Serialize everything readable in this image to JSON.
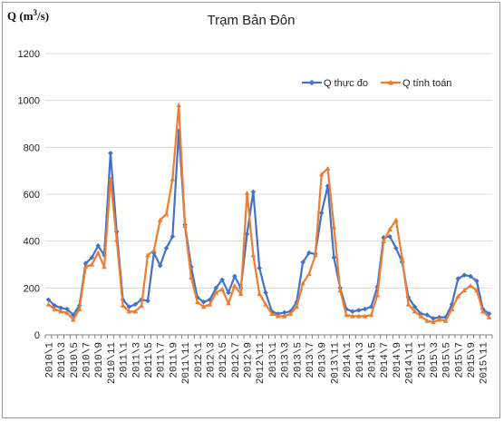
{
  "chart_data": {
    "type": "line",
    "title": "Trạm Bản Đôn",
    "ylabel": "Q (m³/s)",
    "ylabel_main": "Q (m",
    "ylabel_sup": "3",
    "ylabel_tail": "/s)",
    "xlabel": "",
    "ylim": [
      0,
      1200
    ],
    "yticks": [
      "0",
      "200",
      "400",
      "600",
      "800",
      "1000",
      "1200"
    ],
    "grid": true,
    "legend_position": "top-right",
    "x_tick_labels": [
      "2010\\1",
      "2010\\3",
      "2010\\5",
      "2010\\7",
      "2010\\9",
      "2010\\11",
      "2011\\1",
      "2011\\3",
      "2011\\5",
      "2011\\7",
      "2011\\9",
      "2011\\11",
      "2012\\1",
      "2012\\3",
      "2012\\5",
      "2012\\7",
      "2012\\9",
      "2012\\11",
      "2013\\1",
      "2013\\3",
      "2013\\5",
      "2013\\7",
      "2013\\9",
      "2013\\11",
      "2014\\1",
      "2014\\3",
      "2014\\5",
      "2014\\7",
      "2014\\9",
      "2014\\11",
      "2015\\1",
      "2015\\3",
      "2015\\5",
      "2015\\7",
      "2015\\9",
      "2015\\11"
    ],
    "x": [
      "2010\\1",
      "2010\\2",
      "2010\\3",
      "2010\\4",
      "2010\\5",
      "2010\\6",
      "2010\\7",
      "2010\\8",
      "2010\\9",
      "2010\\10",
      "2010\\11",
      "2010\\12",
      "2011\\1",
      "2011\\2",
      "2011\\3",
      "2011\\4",
      "2011\\5",
      "2011\\6",
      "2011\\7",
      "2011\\8",
      "2011\\9",
      "2011\\10",
      "2011\\11",
      "2011\\12",
      "2012\\1",
      "2012\\2",
      "2012\\3",
      "2012\\4",
      "2012\\5",
      "2012\\6",
      "2012\\7",
      "2012\\8",
      "2012\\9",
      "2012\\10",
      "2012\\11",
      "2012\\12",
      "2013\\1",
      "2013\\2",
      "2013\\3",
      "2013\\4",
      "2013\\5",
      "2013\\6",
      "2013\\7",
      "2013\\8",
      "2013\\9",
      "2013\\10",
      "2013\\11",
      "2013\\12",
      "2014\\1",
      "2014\\2",
      "2014\\3",
      "2014\\4",
      "2014\\5",
      "2014\\6",
      "2014\\7",
      "2014\\8",
      "2014\\9",
      "2014\\10",
      "2014\\11",
      "2014\\12",
      "2015\\1",
      "2015\\2",
      "2015\\3",
      "2015\\4",
      "2015\\5",
      "2015\\6",
      "2015\\7",
      "2015\\8",
      "2015\\9",
      "2015\\10",
      "2015\\11",
      "2015\\12"
    ],
    "series": [
      {
        "name": "Q thực đo",
        "color": "#4472C4",
        "marker": "diamond",
        "values": [
          150,
          125,
          115,
          110,
          85,
          125,
          305,
          330,
          380,
          340,
          775,
          440,
          150,
          120,
          130,
          150,
          145,
          350,
          295,
          370,
          420,
          870,
          470,
          290,
          160,
          140,
          150,
          200,
          235,
          180,
          250,
          200,
          430,
          610,
          285,
          180,
          100,
          90,
          95,
          100,
          140,
          310,
          350,
          345,
          520,
          635,
          330,
          200,
          110,
          100,
          105,
          110,
          120,
          205,
          415,
          420,
          370,
          310,
          160,
          120,
          90,
          85,
          70,
          75,
          75,
          130,
          240,
          255,
          250,
          230,
          110,
          90
        ]
      },
      {
        "name": "Q tính toán",
        "color": "#ED7D31",
        "marker": "triangle",
        "values": [
          130,
          110,
          100,
          95,
          65,
          110,
          290,
          300,
          350,
          290,
          665,
          405,
          125,
          100,
          100,
          125,
          340,
          360,
          490,
          515,
          665,
          980,
          465,
          245,
          140,
          120,
          130,
          180,
          195,
          135,
          210,
          175,
          605,
          340,
          175,
          130,
          90,
          80,
          80,
          90,
          120,
          220,
          260,
          340,
          685,
          710,
          460,
          190,
          85,
          80,
          80,
          80,
          85,
          170,
          400,
          450,
          490,
          325,
          130,
          100,
          80,
          60,
          55,
          65,
          60,
          110,
          165,
          190,
          210,
          190,
          100,
          75
        ]
      }
    ]
  }
}
